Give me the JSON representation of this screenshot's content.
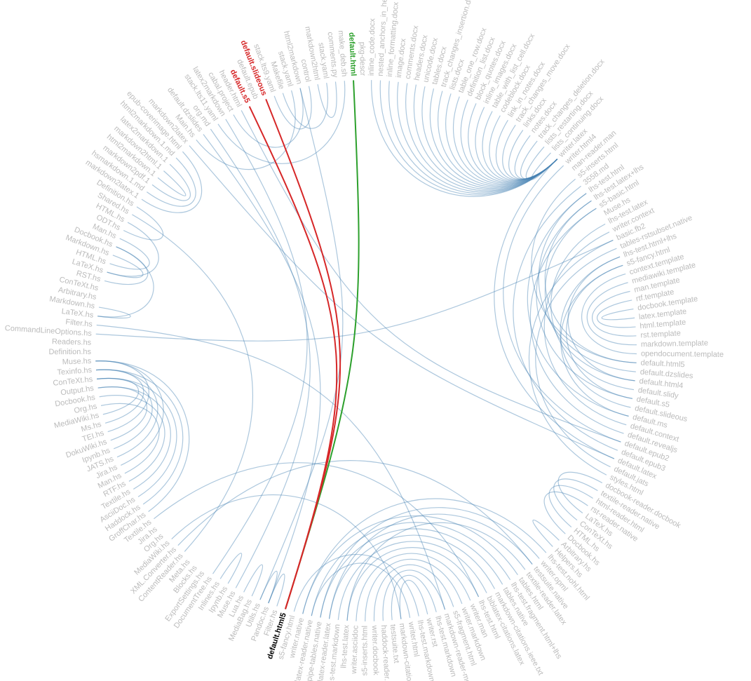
{
  "nodes": [
    "inline_code.docx",
    "nested_anchors_in_header.docx",
    "inline_formatting.docx",
    "image.docx",
    "comments.docx",
    "headers.docx",
    "unicode.docx",
    "tables.docx",
    "track_changes_insertion.docx",
    "lists.docx",
    "table_one_row.docx",
    "definition_list.docx",
    "block_quotes.docx",
    "inline_images.docx",
    "table_with_list_cell.docx",
    "codeblock.docx",
    "link_in_notes.docx",
    "track_changes_move.docx",
    "links.docx",
    "notes.docx",
    "track_changes_deletion.docx",
    "lists_restarting.docx",
    "lists_continuing.docx",
    "writer.latex",
    "writer.html4",
    "man-reader.man",
    "s5-inserts.html",
    "3558.md",
    "lhs-test.html",
    "lhs-test.latex+lhs",
    "s5-basic.html",
    "Muse.hs",
    "lhs-test.latex",
    "writer.context",
    "basic.fb2",
    "tables-rstsubset.native",
    "lhs-test.html+lhs",
    "s5-fancy.html",
    "context.template",
    "mediawiki.template",
    "man.template",
    "rtf.template",
    "docbook.template",
    "latex.template",
    "html.template",
    "rst.template",
    "markdown.template",
    "opendocument.template",
    "default.html5",
    "default.dzslides",
    "default.html4",
    "default.slidy",
    "default.s5",
    "default.slideous",
    "default.ms",
    "default.context",
    "default.revealjs",
    "default.epub2",
    "default.epub3",
    "default.latex",
    "default.jats",
    "styles.html",
    "docbook-reader.docbook",
    "textile-reader.native",
    "html-reader.html",
    "rst-reader.native",
    "LaTeX.hs",
    "ConTeXt.hs",
    "HTML.hs",
    "Docbook.hs",
    "Arbitrary.hs",
    "Helpers.hs",
    "lhs-test.nohl.html",
    "writer.opml",
    "testsuite.native",
    "textile-reader.latex",
    "tables.html",
    "lhs-test.fragment.html+lhs",
    "tables.native",
    "markdown-citations.ieee.txt",
    "biblatex-citations.latex",
    "lhs-test.html",
    "writer.man",
    "writer.markdown",
    "s5-fragment.html",
    "markdown-reader-more.native",
    "lhs-test.markdown",
    "writer.rst",
    "lhs-test.markdown+lhs",
    "writer.html",
    "markdown-citations.txt",
    "testsuite.txt",
    "haddock-reader.native",
    "writer.docbook",
    "s5-inserts.html",
    "writer.asciidoc",
    "lhs-test.latex",
    "lhs-test.markdown",
    "latex-reader.latex",
    "pipe-tables.native",
    "latex-reader.native",
    "writer.native",
    "s5-fancy.html",
    "default.html5",
    "Filter.hs",
    "Pandoc.hs",
    "Utils.hs",
    "MediaBag.hs",
    "Lua.hs",
    "Muse.hs",
    "Ipynb.hs",
    "Inlines.hs",
    "DocumentTree.hs",
    "ExportSettings.hs",
    "Blocks.hs",
    "Meta.hs",
    "ContentReader.hs",
    "XML.Converter.hs",
    "MediaWiki.hs",
    "Org.hs",
    "Jira.hs",
    "Textile.hs",
    "GroffChar.hs",
    "Haddock.hs",
    "AsciiDoc.hs",
    "Textile.hs",
    "RTF.hs",
    "Man.hs",
    "Jira.hs",
    "JATS.hs",
    "Ipynb.hs",
    "DokuWiki.hs",
    "TEI.hs",
    "Ms.hs",
    "MediaWiki.hs",
    "Org.hs",
    "Docbook.hs",
    "Output.hs",
    "ConTeXt.hs",
    "Texinfo.hs",
    "Muse.hs",
    "Definition.hs",
    "Readers.hs",
    "CommandLineOptions.hs",
    "Filter.hs",
    "LaTeX.hs",
    "Markdown.hs",
    "Arbitrary.hs",
    "ConTeXt.hs",
    "RST.hs",
    "LaTeX.hs",
    "HTML.hs",
    "Markdown.hs",
    "Docbook.hs",
    "Man.hs",
    "ODT.hs",
    "HTML.hs",
    "Shared.hs",
    "Definition.hs",
    "markdown2latex.1",
    "hsmarkdown.1.md",
    "markdown2pdf.1",
    "html2markdown.1",
    "markdown2html.1",
    "latex2markdown.1",
    "html2markdown.1.md",
    "epub-coverimage.html",
    "markdown2latex",
    "Main.hs",
    "default.dzslides",
    "org.md",
    "stack.lts11.yaml",
    "latex2markdown",
    "cabal.project",
    "header.html",
    "default.s5",
    "default.epub",
    "default.slideous",
    "stack.lts9.yaml",
    "Makefile",
    "stack.yaml",
    "html2markdown",
    "control",
    "markdown2html",
    "stack.yaml",
    "comments.py",
    "make_deb.sh",
    "default.html",
    "pkg-descr"
  ],
  "edges": [
    [
      0,
      23
    ],
    [
      1,
      23
    ],
    [
      2,
      23
    ],
    [
      3,
      23
    ],
    [
      4,
      23
    ],
    [
      5,
      23
    ],
    [
      6,
      23
    ],
    [
      7,
      23
    ],
    [
      8,
      23
    ],
    [
      9,
      23
    ],
    [
      10,
      23
    ],
    [
      11,
      23
    ],
    [
      12,
      23
    ],
    [
      13,
      23
    ],
    [
      14,
      23
    ],
    [
      15,
      23
    ],
    [
      16,
      23
    ],
    [
      17,
      23
    ],
    [
      18,
      23
    ],
    [
      19,
      23
    ],
    [
      20,
      23
    ],
    [
      21,
      23
    ],
    [
      22,
      23
    ],
    [
      38,
      47
    ],
    [
      39,
      46
    ],
    [
      40,
      45
    ],
    [
      41,
      44
    ],
    [
      42,
      43
    ],
    [
      48,
      26
    ],
    [
      49,
      28
    ],
    [
      50,
      30
    ],
    [
      51,
      32
    ],
    [
      52,
      29
    ],
    [
      53,
      36
    ],
    [
      54,
      37
    ],
    [
      55,
      33
    ],
    [
      56,
      30
    ],
    [
      57,
      24
    ],
    [
      58,
      27
    ],
    [
      59,
      23
    ],
    [
      60,
      35
    ],
    [
      61,
      34
    ],
    [
      48,
      29
    ],
    [
      50,
      36
    ],
    [
      52,
      37
    ],
    [
      54,
      28
    ],
    [
      143,
      34
    ],
    [
      62,
      66
    ],
    [
      63,
      67
    ],
    [
      64,
      68
    ],
    [
      65,
      69
    ],
    [
      70,
      71
    ],
    [
      76,
      101
    ],
    [
      77,
      100
    ],
    [
      78,
      99
    ],
    [
      79,
      98
    ],
    [
      80,
      97
    ],
    [
      81,
      96
    ],
    [
      82,
      95
    ],
    [
      83,
      94
    ],
    [
      84,
      93
    ],
    [
      85,
      92
    ],
    [
      86,
      91
    ],
    [
      87,
      90
    ],
    [
      88,
      102
    ],
    [
      89,
      100
    ],
    [
      72,
      101
    ],
    [
      73,
      99
    ],
    [
      74,
      98
    ],
    [
      75,
      96
    ],
    [
      122,
      140
    ],
    [
      123,
      139
    ],
    [
      124,
      138
    ],
    [
      125,
      137
    ],
    [
      126,
      136
    ],
    [
      127,
      135
    ],
    [
      128,
      140
    ],
    [
      129,
      139
    ],
    [
      130,
      138
    ],
    [
      131,
      137
    ],
    [
      132,
      140
    ],
    [
      133,
      139
    ],
    [
      134,
      138
    ],
    [
      149,
      153
    ],
    [
      150,
      152
    ],
    [
      151,
      154
    ],
    [
      145,
      153
    ],
    [
      145,
      146
    ],
    [
      156,
      150
    ],
    [
      157,
      116
    ],
    [
      158,
      155
    ],
    [
      159,
      166
    ],
    [
      160,
      165
    ],
    [
      161,
      164
    ],
    [
      162,
      163
    ],
    [
      167,
      59
    ],
    [
      168,
      180
    ],
    [
      169,
      105
    ],
    [
      170,
      109
    ],
    [
      171,
      186
    ],
    [
      172,
      112
    ],
    [
      173,
      181
    ],
    [
      174,
      57
    ],
    [
      178,
      182
    ],
    [
      179,
      184
    ],
    [
      181,
      106
    ],
    [
      183,
      185
    ],
    [
      104,
      105
    ],
    [
      105,
      106
    ],
    [
      107,
      108
    ],
    [
      110,
      111
    ],
    [
      117,
      74
    ],
    [
      121,
      81
    ],
    [
      118,
      90
    ],
    [
      144,
      85
    ]
  ],
  "highlight": {
    "node": 103,
    "sources": [
      187
    ],
    "targets": [
      175,
      177
    ],
    "source_color": "#2ca02c",
    "target_color": "#d62728"
  }
}
